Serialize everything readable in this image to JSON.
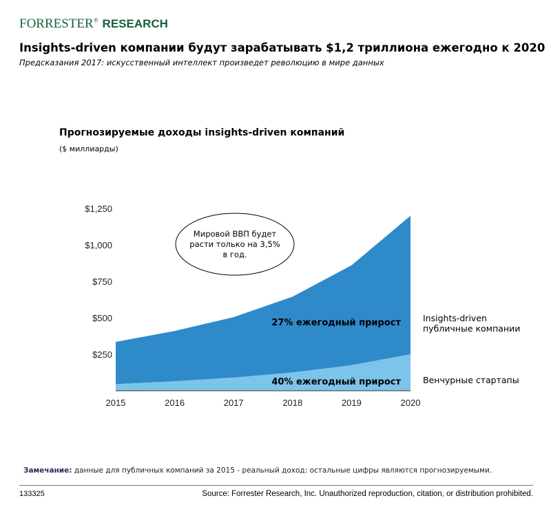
{
  "header": {
    "logo_brand": "FORRESTER",
    "logo_mark": "®",
    "logo_product": "RESEARCH",
    "headline": "Insights-driven компании будут зарабатывать $1,2 триллиона ежегодно к 2020",
    "subhead": "Предсказания 2017: искусственный интеллект произведет революцию в мире данных"
  },
  "chart_data": {
    "type": "area",
    "title": "Прогнозируемые доходы insights-driven компаний",
    "ylabel": "($ миллиарды)",
    "xlabel": "",
    "x": [
      "2015",
      "2016",
      "2017",
      "2018",
      "2019",
      "2020"
    ],
    "yticks": [
      250,
      500,
      750,
      1000,
      1250
    ],
    "ytick_labels": [
      "$250",
      "$500",
      "$750",
      "$1,000",
      "$1,250"
    ],
    "ylim": [
      0,
      1250
    ],
    "stacked": true,
    "grid": false,
    "legend": "right-inline",
    "series": [
      {
        "name": "Венчурные стартапы",
        "values": [
          45,
          65,
          90,
          125,
          175,
          250
        ],
        "color": "#7cc4ea",
        "annotation": "40% ежегодный прирост"
      },
      {
        "name": "Insights-driven публичные компании",
        "values": [
          290,
          345,
          415,
          520,
          685,
          950
        ],
        "color": "#2f8ac9",
        "annotation": "27% ежегодный прирост"
      }
    ],
    "callout_lines": [
      "Мировой ВВП будет",
      "расти только на 3,5%",
      "в год."
    ]
  },
  "labels": {
    "series_public_line1": "Insights-driven",
    "series_public_line2": "публичные компании",
    "series_startups": "Венчурные стартапы"
  },
  "footer": {
    "note_label": "Замечание:",
    "note_text": " данные для публичных компаний за 2015 - реальный доход: остальные цифры являются прогнозируемыми.",
    "doc_id": "133325",
    "source": "Source: Forrester Research, Inc. Unauthorized reproduction, citation, or distribution prohibited."
  }
}
